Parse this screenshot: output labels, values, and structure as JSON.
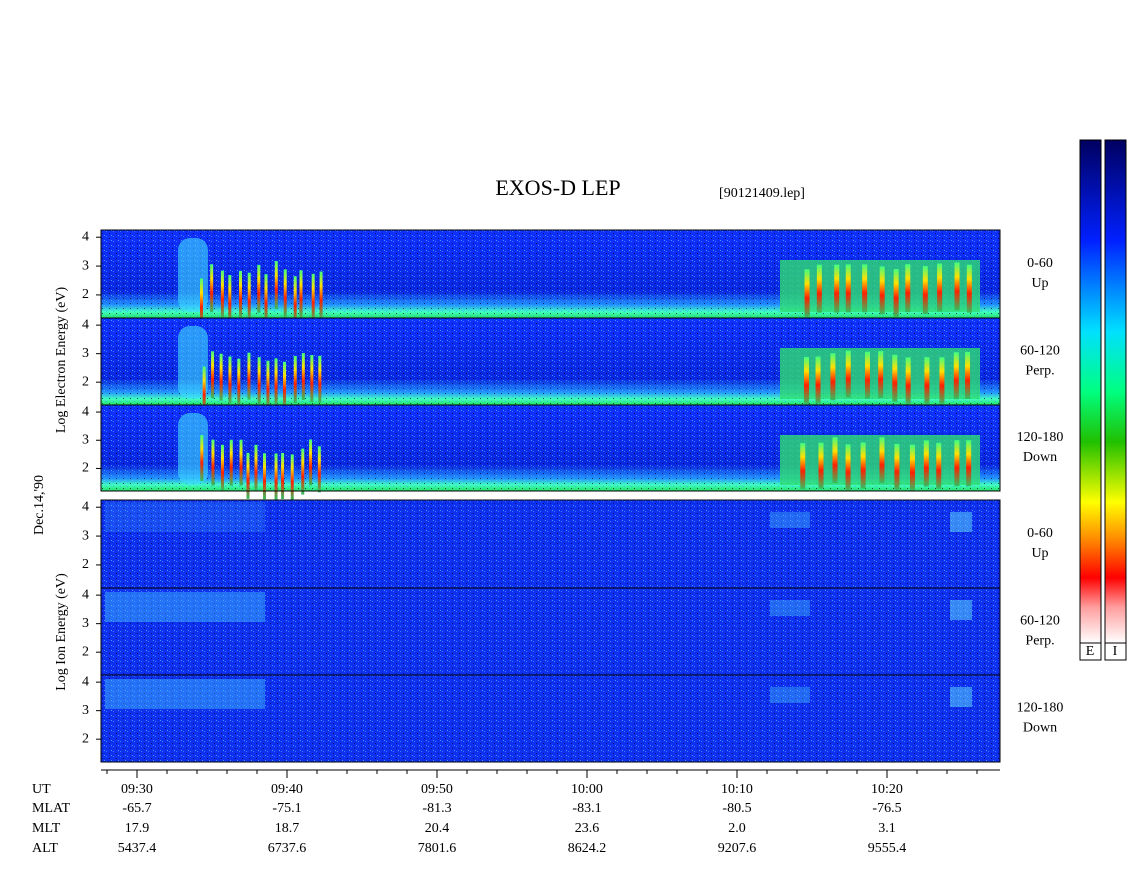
{
  "title": "EXOS-D LEP",
  "file": "[90121409.lep]",
  "date": "Dec.14,'90",
  "electron": {
    "label": "Log Electron Energy (eV)",
    "panels": [
      {
        "range": "0-60",
        "dir": "Up"
      },
      {
        "range": "60-120",
        "dir": "Perp."
      },
      {
        "range": "120-180",
        "dir": "Down"
      }
    ]
  },
  "ion": {
    "label": "Log Ion Energy (eV)",
    "panels": [
      {
        "range": "0-60",
        "dir": "Up"
      },
      {
        "range": "60-120",
        "dir": "Perp."
      },
      {
        "range": "120-180",
        "dir": "Down"
      }
    ]
  },
  "energy_axis": {
    "ylim": [
      1.2,
      4.25
    ],
    "yticks": [
      2,
      3,
      4
    ]
  },
  "time_axis": {
    "ticks": [
      "09:30",
      "09:40",
      "09:50",
      "10:00",
      "10:10",
      "10:20"
    ],
    "rows": [
      {
        "name": "UT"
      },
      {
        "name": "MLAT",
        "values": [
          "-65.7",
          "-75.1",
          "-81.3",
          "-83.1",
          "-80.5",
          "-76.5"
        ]
      },
      {
        "name": "MLT",
        "values": [
          "17.9",
          "18.7",
          "20.4",
          "23.6",
          "2.0",
          "3.1"
        ]
      },
      {
        "name": "ALT",
        "values": [
          "5437.4",
          "6737.6",
          "7801.6",
          "8624.2",
          "9207.6",
          "9555.4"
        ]
      }
    ]
  },
  "colorbar": {
    "labels": [
      "E",
      "I"
    ]
  }
}
